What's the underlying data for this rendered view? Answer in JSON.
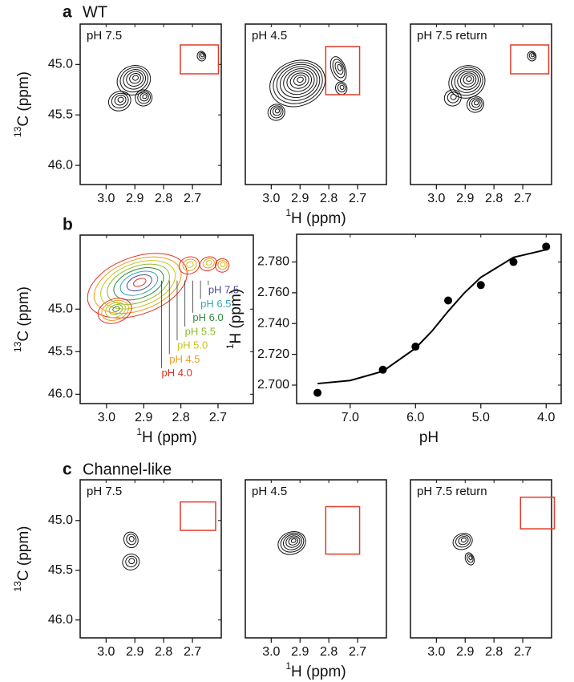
{
  "panel_labels": [
    {
      "label": "a",
      "title": "WT"
    },
    {
      "label": "b"
    },
    {
      "label": "c",
      "title": "Channel-like"
    }
  ],
  "chart_data": [
    {
      "type": "spectrum",
      "title": "pH 7.5",
      "xlim": [
        3.09,
        2.6
      ],
      "ylim": [
        44.6,
        46.19
      ],
      "xticks": [
        {
          "value": 3.0,
          "label": "3.0"
        },
        2.9,
        2.8,
        2.7
      ],
      "yticks": [
        {
          "value": 45.0,
          "label": "45.0"
        },
        45.5,
        {
          "value": 46.0,
          "label": "46.0"
        }
      ],
      "ylabel_sup": "13",
      "ylabel": "C (ppm)"
    },
    {
      "type": "spectrum",
      "title": "pH 4.5",
      "xlim": [
        3.09,
        2.6
      ],
      "ylim": [
        44.6,
        46.19
      ],
      "xticks": [
        {
          "value": 3.0,
          "label": "3.0"
        },
        2.9,
        2.8,
        2.7
      ],
      "xlabel_sup": "1",
      "xlabel": "H (ppm)"
    },
    {
      "type": "spectrum",
      "title": "pH 7.5 return",
      "xlim": [
        3.09,
        2.6
      ],
      "ylim": [
        44.6,
        46.19
      ],
      "xticks": [
        {
          "value": 3.0,
          "label": "3.0"
        },
        2.9,
        2.8,
        2.7
      ]
    },
    {
      "type": "spectrum",
      "xlim": [
        3.071,
        2.605
      ],
      "ylim": [
        44.13,
        46.11
      ],
      "xticks": [
        {
          "value": 3.0,
          "label": "3.0"
        },
        2.9,
        2.8,
        2.7
      ],
      "yticks": [
        {
          "value": 45.0,
          "label": "45.0"
        },
        45.5,
        {
          "value": 46.0,
          "label": "46.0"
        }
      ],
      "ylabel_sup": "13",
      "ylabel": "C (ppm)",
      "xlabel_sup": "1",
      "xlabel": "H (ppm)",
      "annotations": [
        {
          "text": "pH 7.5",
          "color": "#4a4a9c"
        },
        {
          "text": "pH 6.5",
          "color": "#3aa6b4"
        },
        {
          "text": "pH 6.0",
          "color": "#2e8a3c"
        },
        {
          "text": "pH 5.5",
          "color": "#8cba28"
        },
        {
          "text": "pH 5.0",
          "color": "#c9c21e"
        },
        {
          "text": "pH 4.5",
          "color": "#eb9c1e"
        },
        {
          "text": "pH 4.0",
          "color": "#e2301e"
        }
      ]
    },
    {
      "type": "scatter",
      "x": [
        7.5,
        6.5,
        6.0,
        5.5,
        5.0,
        4.5,
        4.0
      ],
      "values": [
        2.695,
        2.71,
        2.725,
        2.755,
        2.765,
        2.78,
        2.79
      ],
      "color": "#000000",
      "fit": {
        "x": [
          7.5,
          7.0,
          6.5,
          6.0,
          5.75,
          5.5,
          5.25,
          5.0,
          4.5,
          4.0
        ],
        "values": [
          2.701,
          2.703,
          2.709,
          2.724,
          2.735,
          2.748,
          2.76,
          2.77,
          2.783,
          2.788
        ]
      },
      "xlim": [
        7.82,
        3.77
      ],
      "ylim": [
        2.688,
        2.798
      ],
      "xticks": [
        {
          "value": 7.0,
          "label": "7.0"
        },
        {
          "value": 6.0,
          "label": "6.0"
        },
        {
          "value": 5.0,
          "label": "5.0"
        },
        {
          "value": 4.0,
          "label": "4.0"
        }
      ],
      "yticks": [
        {
          "value": 2.7,
          "label": "2.700"
        },
        {
          "value": 2.72,
          "label": "2.720"
        },
        {
          "value": 2.74,
          "label": "2.740"
        },
        {
          "value": 2.76,
          "label": "2.760"
        },
        {
          "value": 2.78,
          "label": "2.780"
        }
      ],
      "xlabel": "pH",
      "ylabel_sup": "1",
      "ylabel": "H (ppm)"
    },
    {
      "type": "spectrum",
      "title": "pH 7.5",
      "xlim": [
        3.09,
        2.6
      ],
      "ylim": [
        44.59,
        46.18
      ],
      "xticks": [
        {
          "value": 3.0,
          "label": "3.0"
        },
        2.9,
        2.8,
        2.7
      ],
      "yticks": [
        {
          "value": 45.0,
          "label": "45.0"
        },
        45.5,
        {
          "value": 46.0,
          "label": "46.0"
        }
      ],
      "ylabel_sup": "13",
      "ylabel": "C (ppm)"
    },
    {
      "type": "spectrum",
      "title": "pH 4.5",
      "xlim": [
        3.09,
        2.6
      ],
      "ylim": [
        44.59,
        46.18
      ],
      "xticks": [
        {
          "value": 3.0,
          "label": "3.0"
        },
        2.9,
        2.8,
        2.7
      ],
      "xlabel_sup": "1",
      "xlabel": "H (ppm)"
    },
    {
      "type": "spectrum",
      "title": "pH 7.5 return",
      "xlim": [
        3.09,
        2.6
      ],
      "ylim": [
        44.59,
        46.18
      ],
      "xticks": [
        {
          "value": 3.0,
          "label": "3.0"
        },
        2.9,
        2.8,
        2.7
      ]
    }
  ]
}
